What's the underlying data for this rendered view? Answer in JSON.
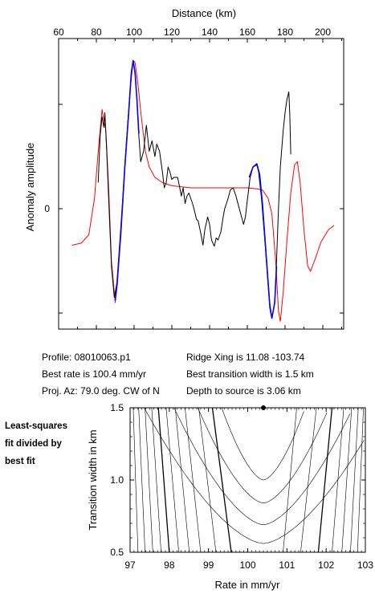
{
  "chart_data": [
    {
      "type": "line",
      "xlabel": "Distance (km)",
      "ylabel": "Anomaly amplitude",
      "xlim": [
        60,
        210
      ],
      "x_ticks": [
        "60",
        "80",
        "100",
        "120",
        "140",
        "160",
        "180",
        "200"
      ],
      "y_ticks": [
        "0"
      ],
      "series": [
        {
          "color": "#ff0000",
          "role": "model",
          "points": [
            [
              67,
              -0.35
            ],
            [
              72,
              -0.33
            ],
            [
              76,
              -0.25
            ],
            [
              79,
              0.1
            ],
            [
              81,
              0.55
            ],
            [
              83,
              0.95
            ],
            [
              85,
              0.75
            ],
            [
              86.5,
              0.2
            ],
            [
              88,
              -0.5
            ],
            [
              90,
              -0.9
            ],
            [
              91.5,
              -0.55
            ],
            [
              94,
              0.1
            ],
            [
              96,
              0.65
            ],
            [
              98,
              1.15
            ],
            [
              99.5,
              1.42
            ],
            [
              100.5,
              1.4
            ],
            [
              102,
              1.2
            ],
            [
              104,
              0.85
            ],
            [
              106,
              0.55
            ],
            [
              108,
              0.4
            ],
            [
              111,
              0.3
            ],
            [
              115,
              0.25
            ],
            [
              120,
              0.22
            ],
            [
              130,
              0.2
            ],
            [
              150,
              0.2
            ],
            [
              160,
              0.2
            ],
            [
              165,
              0.19
            ],
            [
              168,
              0.18
            ],
            [
              171,
              0.1
            ],
            [
              173,
              -0.05
            ],
            [
              175,
              -0.5
            ],
            [
              176.5,
              -0.98
            ],
            [
              177.5,
              -1.08
            ],
            [
              179,
              -0.8
            ],
            [
              181,
              -0.3
            ],
            [
              183,
              0.15
            ],
            [
              185,
              0.42
            ],
            [
              186.5,
              0.45
            ],
            [
              188,
              0.25
            ],
            [
              190,
              -0.2
            ],
            [
              192,
              -0.55
            ],
            [
              193.5,
              -0.6
            ],
            [
              196,
              -0.48
            ],
            [
              199,
              -0.32
            ],
            [
              203,
              -0.2
            ],
            [
              206,
              -0.16
            ]
          ]
        },
        {
          "color": "#000000",
          "role": "observed",
          "points": [
            [
              81,
              0.25
            ],
            [
              82,
              0.7
            ],
            [
              83,
              0.88
            ],
            [
              84,
              0.78
            ],
            [
              84.5,
              0.92
            ],
            [
              85.5,
              0.55
            ],
            [
              86.5,
              0.1
            ],
            [
              88,
              -0.55
            ],
            [
              89.5,
              -0.85
            ],
            [
              91,
              -0.7
            ],
            [
              93,
              -0.2
            ],
            [
              95,
              0.4
            ],
            [
              97,
              0.9
            ],
            [
              98.5,
              1.3
            ],
            [
              99.5,
              1.42
            ],
            [
              100.5,
              1.3
            ],
            [
              101.5,
              1.05
            ],
            [
              102.5,
              0.7
            ],
            [
              103.5,
              0.45
            ],
            [
              105,
              0.55
            ],
            [
              106.5,
              0.8
            ],
            [
              108,
              0.55
            ],
            [
              109.5,
              0.65
            ],
            [
              111,
              0.5
            ],
            [
              112,
              0.62
            ],
            [
              113.5,
              0.55
            ],
            [
              115,
              0.35
            ],
            [
              116,
              0.2
            ],
            [
              117,
              0.25
            ],
            [
              118,
              0.4
            ],
            [
              119,
              0.35
            ],
            [
              120,
              0.28
            ],
            [
              121,
              0.3
            ],
            [
              123,
              0.3
            ],
            [
              124,
              0.22
            ],
            [
              125,
              0.12
            ],
            [
              126,
              0.2
            ],
            [
              127,
              0.05
            ],
            [
              128,
              0.12
            ],
            [
              129,
              0.15
            ],
            [
              131,
              0.05
            ],
            [
              132,
              -0.02
            ],
            [
              133,
              -0.1
            ],
            [
              134,
              -0.12
            ],
            [
              135.5,
              -0.25
            ],
            [
              136.5,
              -0.35
            ],
            [
              137.5,
              -0.2
            ],
            [
              139,
              -0.08
            ],
            [
              140,
              -0.15
            ],
            [
              141,
              -0.3
            ],
            [
              142.5,
              -0.36
            ],
            [
              143.5,
              -0.28
            ],
            [
              144.5,
              -0.3
            ],
            [
              146,
              -0.22
            ],
            [
              147,
              -0.1
            ],
            [
              148,
              0.0
            ],
            [
              149.5,
              0.08
            ],
            [
              151,
              0.18
            ],
            [
              152.5,
              0.2
            ],
            [
              154,
              0.12
            ],
            [
              155,
              0.05
            ],
            [
              156.5,
              -0.05
            ],
            [
              158,
              -0.15
            ],
            [
              159,
              -0.08
            ],
            [
              160,
              0.08
            ],
            [
              161.5,
              0.3
            ],
            [
              163,
              0.4
            ],
            [
              165,
              0.42
            ],
            [
              166,
              0.35
            ],
            [
              167.5,
              0.1
            ],
            [
              169.5,
              -0.35
            ],
            [
              171.5,
              -0.85
            ],
            [
              173,
              -1.05
            ],
            [
              174.5,
              -0.9
            ],
            [
              175.5,
              -0.5
            ],
            [
              176.5,
              0.0
            ],
            [
              177.5,
              0.4
            ],
            [
              179,
              0.75
            ],
            [
              180,
              0.92
            ],
            [
              181,
              1.05
            ],
            [
              182,
              1.12
            ],
            [
              182.5,
              0.9
            ],
            [
              183,
              0.52
            ]
          ]
        },
        {
          "color": "#0000ff",
          "role": "fit-window",
          "segments": [
            [
              [
                90,
                -0.88
              ],
              [
                91,
                -0.72
              ],
              [
                93,
                -0.22
              ],
              [
                95,
                0.38
              ],
              [
                97,
                0.88
              ],
              [
                98.5,
                1.3
              ],
              [
                99.5,
                1.42
              ],
              [
                100.5,
                1.3
              ],
              [
                101.5,
                1.05
              ],
              [
                102.5,
                0.72
              ]
            ],
            [
              [
                161,
                0.3
              ],
              [
                163,
                0.4
              ],
              [
                165,
                0.43
              ],
              [
                166.5,
                0.33
              ],
              [
                168,
                0.05
              ],
              [
                170,
                -0.45
              ],
              [
                172,
                -0.95
              ],
              [
                173,
                -1.05
              ],
              [
                174.5,
                -0.9
              ],
              [
                175.5,
                -0.55
              ]
            ]
          ]
        }
      ]
    },
    {
      "type": "contour",
      "xlabel": "Rate in mm/yr",
      "ylabel": "Transition width in km",
      "xlim": [
        97,
        103
      ],
      "ylim": [
        0.5,
        1.5
      ],
      "x_ticks": [
        "97",
        "98",
        "99",
        "100",
        "101",
        "102",
        "103"
      ],
      "y_ticks": [
        "0.5",
        "1.0",
        "1.5"
      ],
      "best_fit": {
        "rate": 100.4,
        "width": 1.5
      }
    }
  ],
  "profile": {
    "profile_text": "Profile: 08010063.p1",
    "rate_text": "Best rate is 100.4 mm/yr",
    "azimuth_text": "Proj. Az: 79.0 deg. CW of N",
    "ridge_text": "Ridge Xing is 11.08 -103.74",
    "width_text": "Best transition width is 1.5 km",
    "depth_text": "Depth to source is   3.06 km"
  },
  "side_note": {
    "line1": "Least-squares",
    "line2": "fit divided by",
    "line3": "best fit"
  }
}
